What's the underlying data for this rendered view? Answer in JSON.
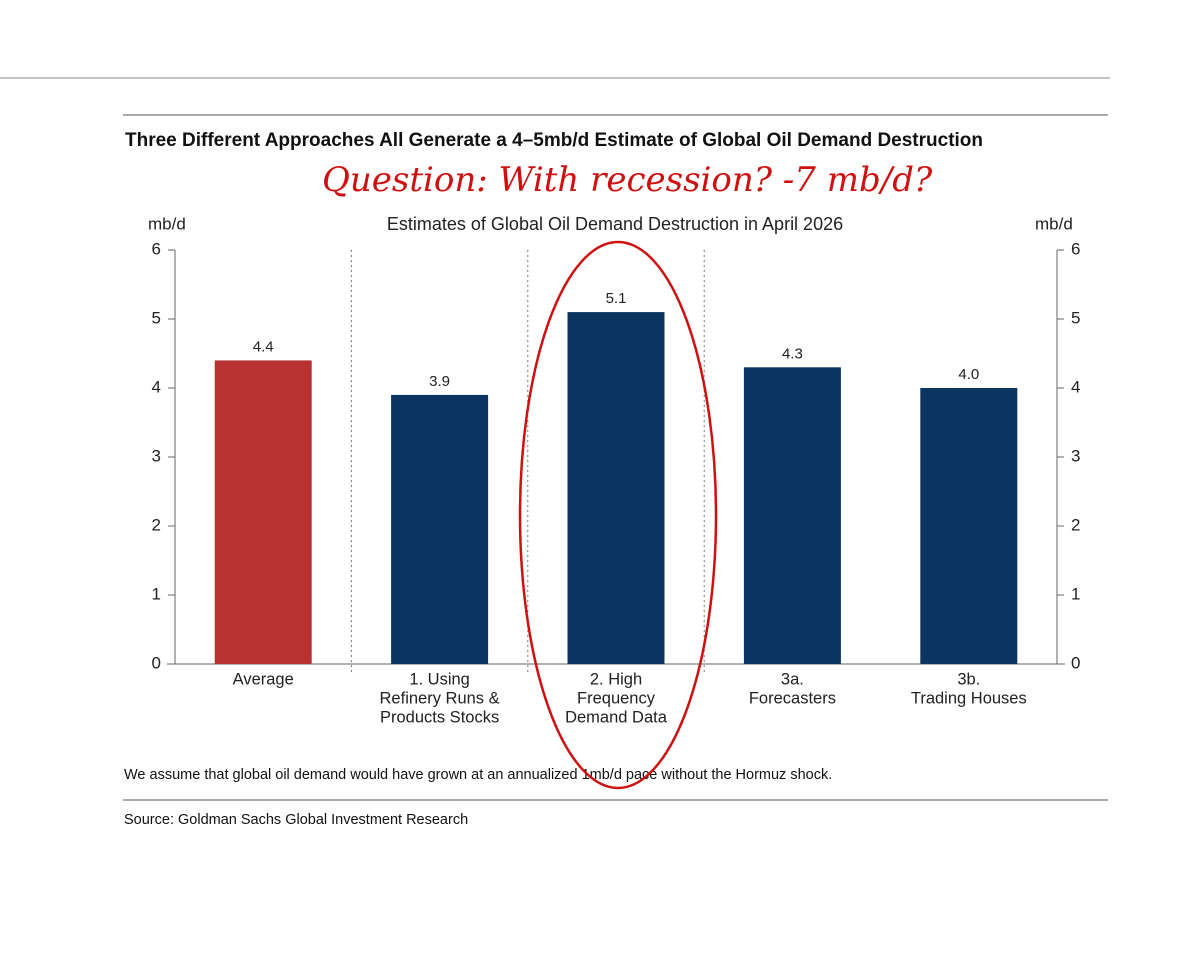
{
  "chart_data": {
    "type": "bar",
    "title": "Three Different Approaches All Generate a 4–5mb/d Estimate of Global Oil Demand Destruction",
    "annotation": "Question: With recession?  -7 mb/d?",
    "subtitle": "Estimates of Global Oil Demand Destruction in April 2026",
    "y_label": "mb/d",
    "y2_label": "mb/d",
    "categories": [
      [
        "Average"
      ],
      [
        "1. Using",
        "Refinery Runs &",
        "Products Stocks"
      ],
      [
        "2. High",
        "Frequency",
        "Demand Data"
      ],
      [
        "3a.",
        "Forecasters"
      ],
      [
        "3b.",
        "Trading Houses"
      ]
    ],
    "values": [
      4.4,
      3.9,
      5.1,
      4.3,
      4.0
    ],
    "value_labels": [
      "4.4",
      "3.9",
      "5.1",
      "4.3",
      "4.0"
    ],
    "colors": [
      "#b83232",
      "#0b3560",
      "#0b3560",
      "#0b3560",
      "#0b3560"
    ],
    "ylim": [
      0,
      6
    ],
    "yticks": [
      0,
      1,
      2,
      3,
      4,
      5,
      6
    ],
    "y2lim": [
      0,
      6
    ],
    "y2ticks": [
      0,
      1,
      2,
      3,
      4,
      5,
      6
    ],
    "note": "We assume that global oil demand would have grown at an annualized 1mb/d pace without the Hormuz shock.",
    "source": "Source: Goldman Sachs Global Investment Research"
  }
}
